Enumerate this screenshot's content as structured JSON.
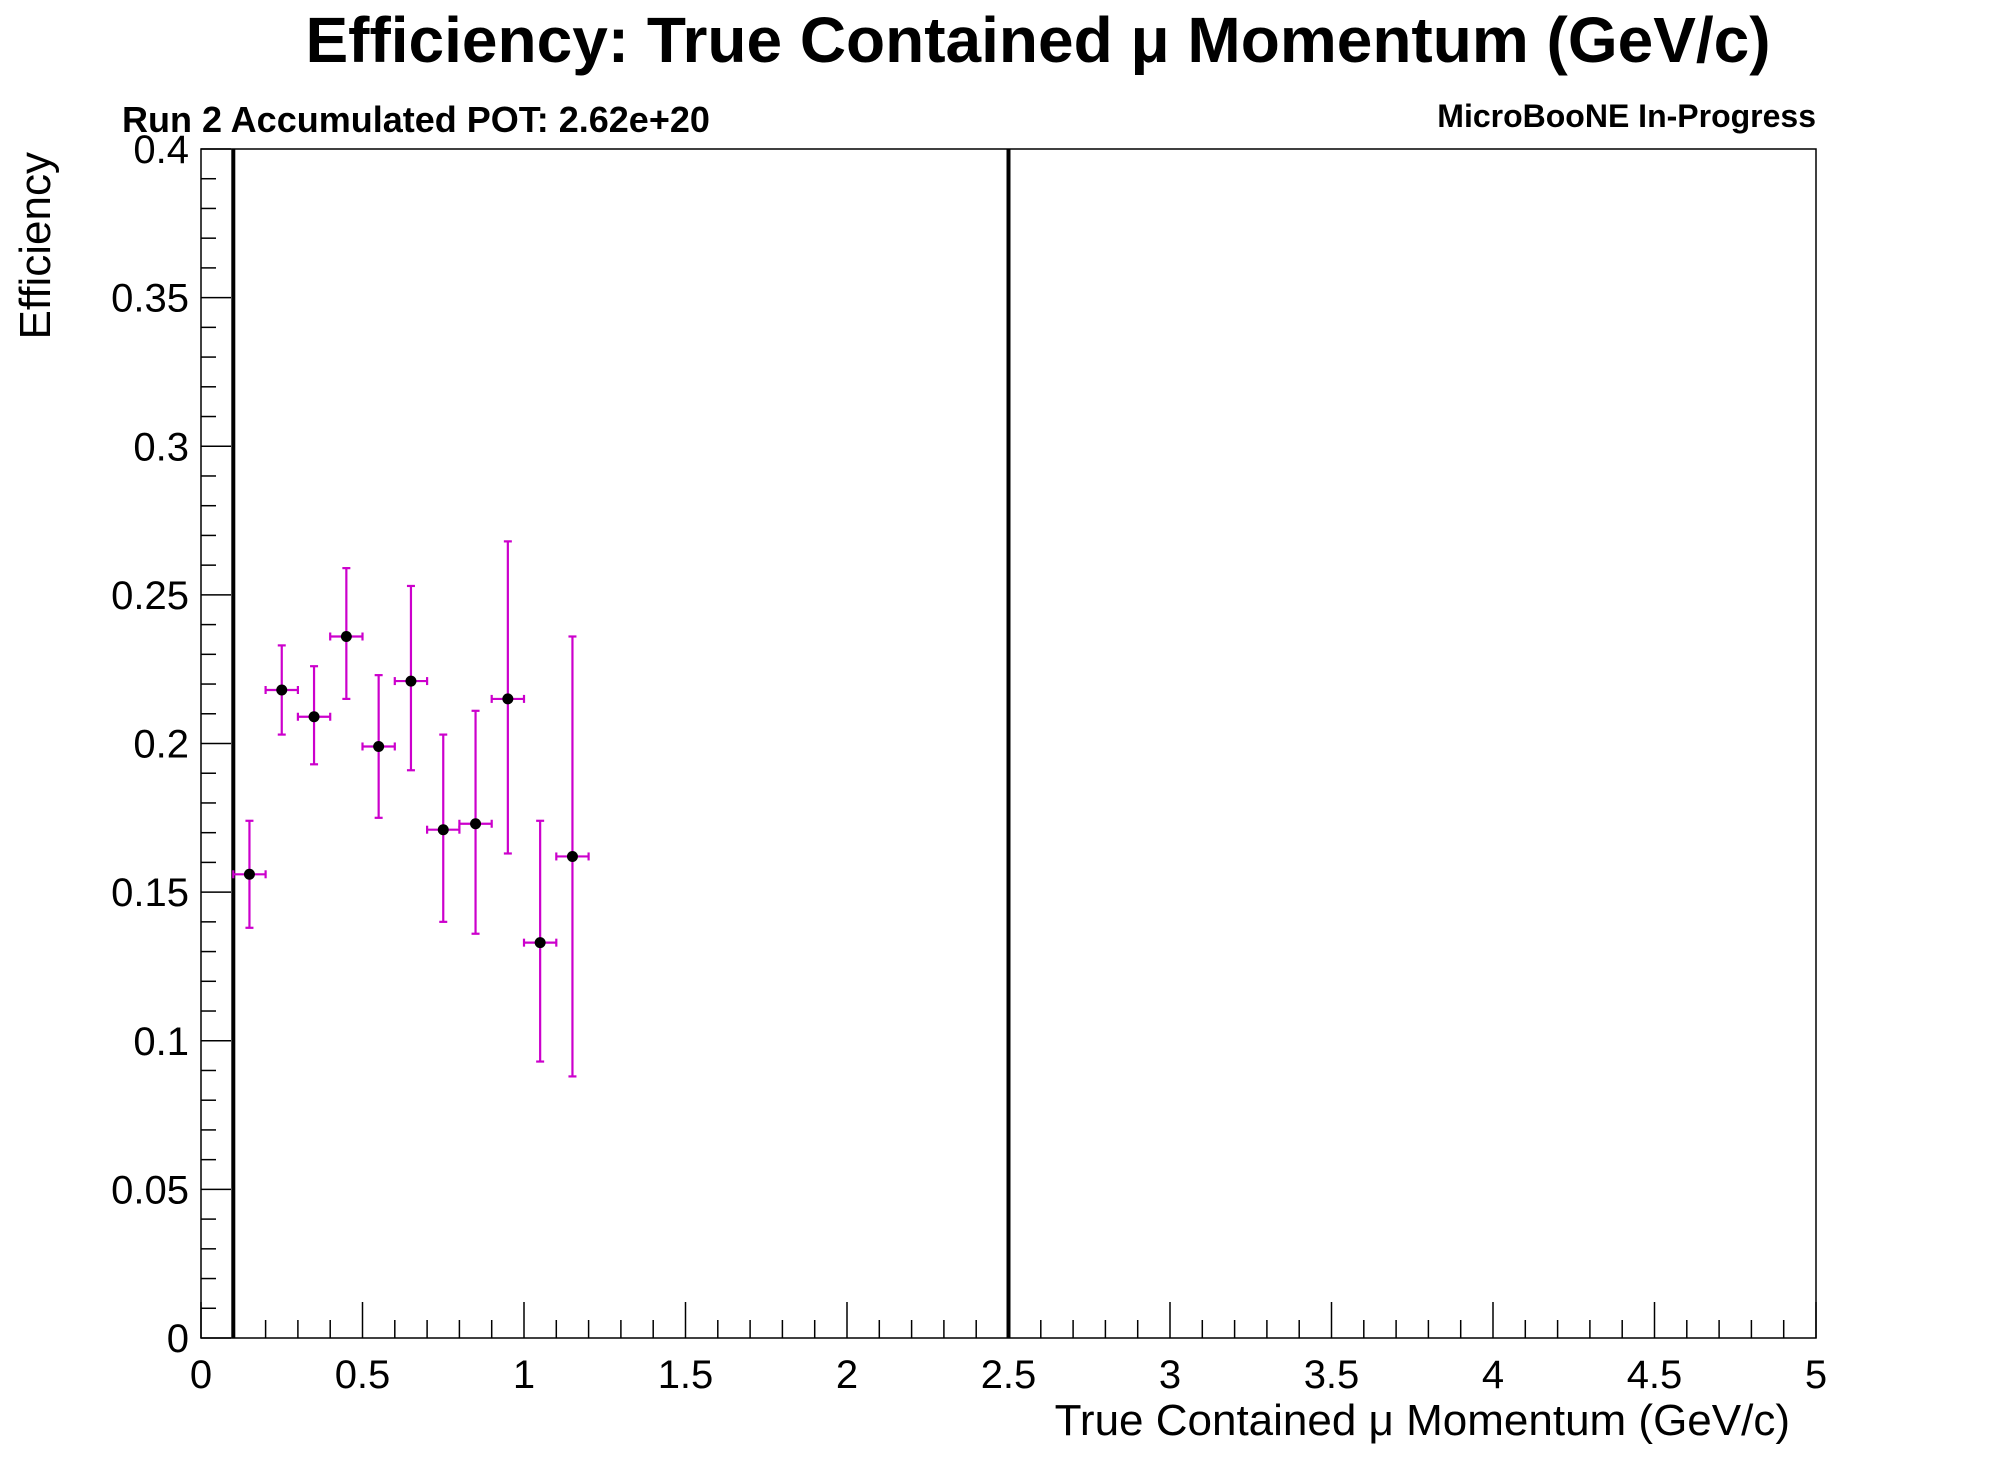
{
  "chart_data": {
    "type": "scatter",
    "title": "Efficiency: True Contained  μ Momentum (GeV/c)",
    "subtitle_left": "Run 2 Accumulated POT: 2.62e+20",
    "subtitle_right": "MicroBooNE In-Progress",
    "xlabel": "True Contained  μ Momentum (GeV/c)",
    "ylabel": "Efficiency",
    "xlim": [
      0,
      5
    ],
    "ylim": [
      0,
      0.4
    ],
    "x_ticks": [
      "0",
      "0.5",
      "1",
      "1.5",
      "2",
      "2.5",
      "3",
      "3.5",
      "4",
      "4.5",
      "5"
    ],
    "y_ticks": [
      "0",
      "0.05",
      "0.1",
      "0.15",
      "0.2",
      "0.25",
      "0.3",
      "0.35",
      "0.4"
    ],
    "grid": false,
    "vertical_lines": [
      0.1,
      2.5
    ],
    "series": [
      {
        "color": "#cc00cc",
        "marker_color": "#000000",
        "points": [
          {
            "x": 0.15,
            "x_err": 0.05,
            "y": 0.156,
            "y_low": 0.138,
            "y_high": 0.174
          },
          {
            "x": 0.25,
            "x_err": 0.05,
            "y": 0.218,
            "y_low": 0.203,
            "y_high": 0.233
          },
          {
            "x": 0.35,
            "x_err": 0.05,
            "y": 0.209,
            "y_low": 0.193,
            "y_high": 0.226
          },
          {
            "x": 0.45,
            "x_err": 0.05,
            "y": 0.236,
            "y_low": 0.215,
            "y_high": 0.259
          },
          {
            "x": 0.55,
            "x_err": 0.05,
            "y": 0.199,
            "y_low": 0.175,
            "y_high": 0.223
          },
          {
            "x": 0.65,
            "x_err": 0.05,
            "y": 0.221,
            "y_low": 0.191,
            "y_high": 0.253
          },
          {
            "x": 0.75,
            "x_err": 0.05,
            "y": 0.171,
            "y_low": 0.14,
            "y_high": 0.203
          },
          {
            "x": 0.85,
            "x_err": 0.05,
            "y": 0.173,
            "y_low": 0.136,
            "y_high": 0.211
          },
          {
            "x": 0.95,
            "x_err": 0.05,
            "y": 0.215,
            "y_low": 0.163,
            "y_high": 0.268
          },
          {
            "x": 1.05,
            "x_err": 0.05,
            "y": 0.133,
            "y_low": 0.093,
            "y_high": 0.174
          },
          {
            "x": 1.15,
            "x_err": 0.05,
            "y": 0.162,
            "y_low": 0.088,
            "y_high": 0.236
          }
        ]
      }
    ]
  }
}
